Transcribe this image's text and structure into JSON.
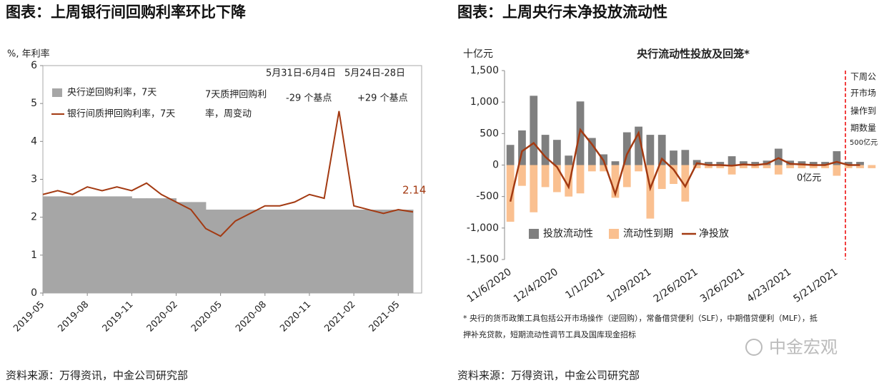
{
  "page": {
    "title_left": "图表：上周银行间回购利率环比下降",
    "title_right": "图表：上周央行未净投放流动性",
    "source_left": "资料来源：万得资讯，中金公司研究部",
    "source_right": "资料来源：万得资讯，中金公司研究部",
    "watermark": "中金宏观"
  },
  "chart_data": [
    {
      "type": "line",
      "y_label": "%, 年利率",
      "x": [
        "2019-05",
        "2019-06",
        "2019-07",
        "2019-08",
        "2019-09",
        "2019-10",
        "2019-11",
        "2019-12",
        "2020-01",
        "2020-02",
        "2020-03",
        "2020-04",
        "2020-05",
        "2020-06",
        "2020-07",
        "2020-08",
        "2020-09",
        "2020-10",
        "2020-11",
        "2020-12",
        "2021-01",
        "2021-02",
        "2021-03",
        "2021-04",
        "2021-05",
        "2021-06"
      ],
      "series": [
        {
          "name": "央行逆回购利率，7天",
          "type": "area",
          "color": "#a6a6a6",
          "values": [
            2.55,
            2.55,
            2.55,
            2.55,
            2.55,
            2.55,
            2.5,
            2.5,
            2.5,
            2.4,
            2.4,
            2.2,
            2.2,
            2.2,
            2.2,
            2.2,
            2.2,
            2.2,
            2.2,
            2.2,
            2.2,
            2.2,
            2.2,
            2.2,
            2.2,
            2.2
          ]
        },
        {
          "name": "银行间质押回购利率，7天",
          "type": "line",
          "color": "#a33a12",
          "values": [
            2.6,
            2.7,
            2.6,
            2.8,
            2.7,
            2.8,
            2.7,
            2.9,
            2.6,
            2.4,
            2.2,
            1.7,
            1.5,
            1.9,
            2.1,
            2.3,
            2.3,
            2.4,
            2.6,
            2.5,
            4.8,
            2.3,
            2.2,
            2.1,
            2.2,
            2.14
          ]
        }
      ],
      "xlim": [
        "2019-05",
        "2021-06"
      ],
      "xticks": [
        "2019-05",
        "2019-08",
        "2019-11",
        "2020-02",
        "2020-05",
        "2020-08",
        "2020-11",
        "2021-02",
        "2021-05"
      ],
      "ylim": [
        0,
        6
      ],
      "yticks": [
        0,
        1,
        2,
        3,
        4,
        5,
        6
      ],
      "grid": false,
      "legend": "upper left",
      "annotations": [
        "5月31日-6月4日",
        "5月24日-28日",
        "7天质押回购利",
        "率，周变动",
        "-29  个基点",
        "+29 个基点"
      ]
    },
    {
      "type": "bar",
      "title": "央行流动性投放及回笼*",
      "y_label": "十亿元",
      "categories": [
        "11/6/2020",
        null,
        null,
        null,
        "12/4/2020",
        null,
        null,
        null,
        "1/1/2021",
        null,
        null,
        null,
        "1/29/2021",
        null,
        null,
        null,
        "2/26/2021",
        null,
        null,
        null,
        "3/26/2021",
        null,
        null,
        null,
        "4/23/2021",
        null,
        null,
        null,
        "5/21/2021",
        null,
        null,
        null
      ],
      "series": [
        {
          "name": "投放流动性",
          "type": "bar",
          "color": "#7f7f7f",
          "values": [
            320,
            550,
            1100,
            480,
            400,
            150,
            1010,
            430,
            170,
            60,
            520,
            610,
            480,
            480,
            230,
            240,
            80,
            50,
            50,
            140,
            60,
            50,
            70,
            260,
            70,
            60,
            50,
            50,
            220,
            50,
            50,
            null
          ]
        },
        {
          "name": "流动性到期",
          "type": "bar",
          "color": "#fac090",
          "values": [
            -900,
            -330,
            -750,
            -350,
            -430,
            -500,
            -450,
            -100,
            -100,
            -520,
            -350,
            -100,
            -850,
            -380,
            -300,
            -580,
            -50,
            -50,
            -50,
            -150,
            -50,
            -50,
            -50,
            -150,
            -50,
            -50,
            -50,
            -50,
            -170,
            -50,
            -50,
            -50
          ]
        },
        {
          "name": "净投放",
          "type": "line",
          "color": "#a33a12",
          "values": [
            -580,
            220,
            350,
            130,
            -30,
            -350,
            560,
            330,
            70,
            -460,
            170,
            510,
            -370,
            100,
            -70,
            -340,
            30,
            0,
            0,
            -10,
            10,
            0,
            20,
            110,
            20,
            10,
            0,
            0,
            50,
            0,
            0,
            null
          ]
        }
      ],
      "ylim": [
        -1500,
        1500
      ],
      "yticks": [
        {
          "value": -1500,
          "label": "-1,500"
        },
        {
          "value": -1000,
          "label": "-1,000"
        },
        -500,
        0,
        500,
        {
          "value": 1000,
          "label": "1,000"
        },
        {
          "value": 1500,
          "label": "1,500"
        }
      ],
      "grid": false,
      "legend": "lower left",
      "annotations": [
        "下周公",
        "开市场",
        "操作到",
        "期数量",
        "500亿元",
        "0亿元"
      ],
      "footnote": [
        "* 央行的货币政策工具包括公开市场操作（逆回购），常备借贷便利（SLF），中期借贷便利（MLF），抵",
        "押补充贷款，短期流动性调节工具及国库现金招标"
      ]
    }
  ]
}
